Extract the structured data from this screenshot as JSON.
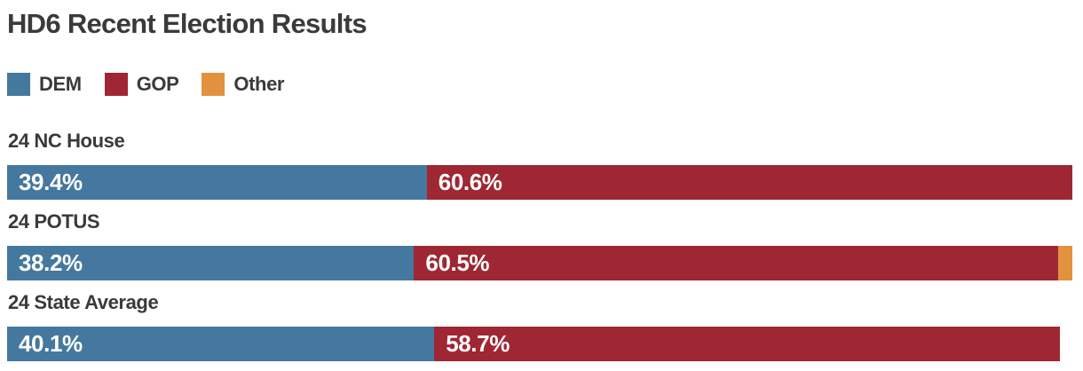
{
  "chart_data": {
    "type": "bar",
    "variant": "horizontal-stacked",
    "title": "HD6 Recent Election Results",
    "xlim": [
      0,
      100
    ],
    "grid": false,
    "legend": {
      "position": "top-left",
      "entries": [
        {
          "name": "DEM",
          "color": "#45789e"
        },
        {
          "name": "GOP",
          "color": "#9e2733"
        },
        {
          "name": "Other",
          "color": "#e2923f"
        }
      ]
    },
    "rows": [
      {
        "label": "24 NC House",
        "segments": [
          {
            "party": "DEM",
            "value": 39.4,
            "text": "39.4%"
          },
          {
            "party": "GOP",
            "value": 60.6,
            "text": "60.6%"
          }
        ]
      },
      {
        "label": "24 POTUS",
        "segments": [
          {
            "party": "DEM",
            "value": 38.2,
            "text": "38.2%"
          },
          {
            "party": "GOP",
            "value": 60.5,
            "text": "60.5%"
          },
          {
            "party": "Other",
            "value": 1.3,
            "text": ""
          }
        ]
      },
      {
        "label": "24 State Average",
        "segments": [
          {
            "party": "DEM",
            "value": 40.1,
            "text": "40.1%"
          },
          {
            "party": "GOP",
            "value": 58.7,
            "text": "58.7%"
          }
        ]
      }
    ],
    "title_color": "#3a3a3a",
    "label_color": "#3a3a3a",
    "value_label_color": "#ffffff",
    "background": "#ffffff"
  }
}
